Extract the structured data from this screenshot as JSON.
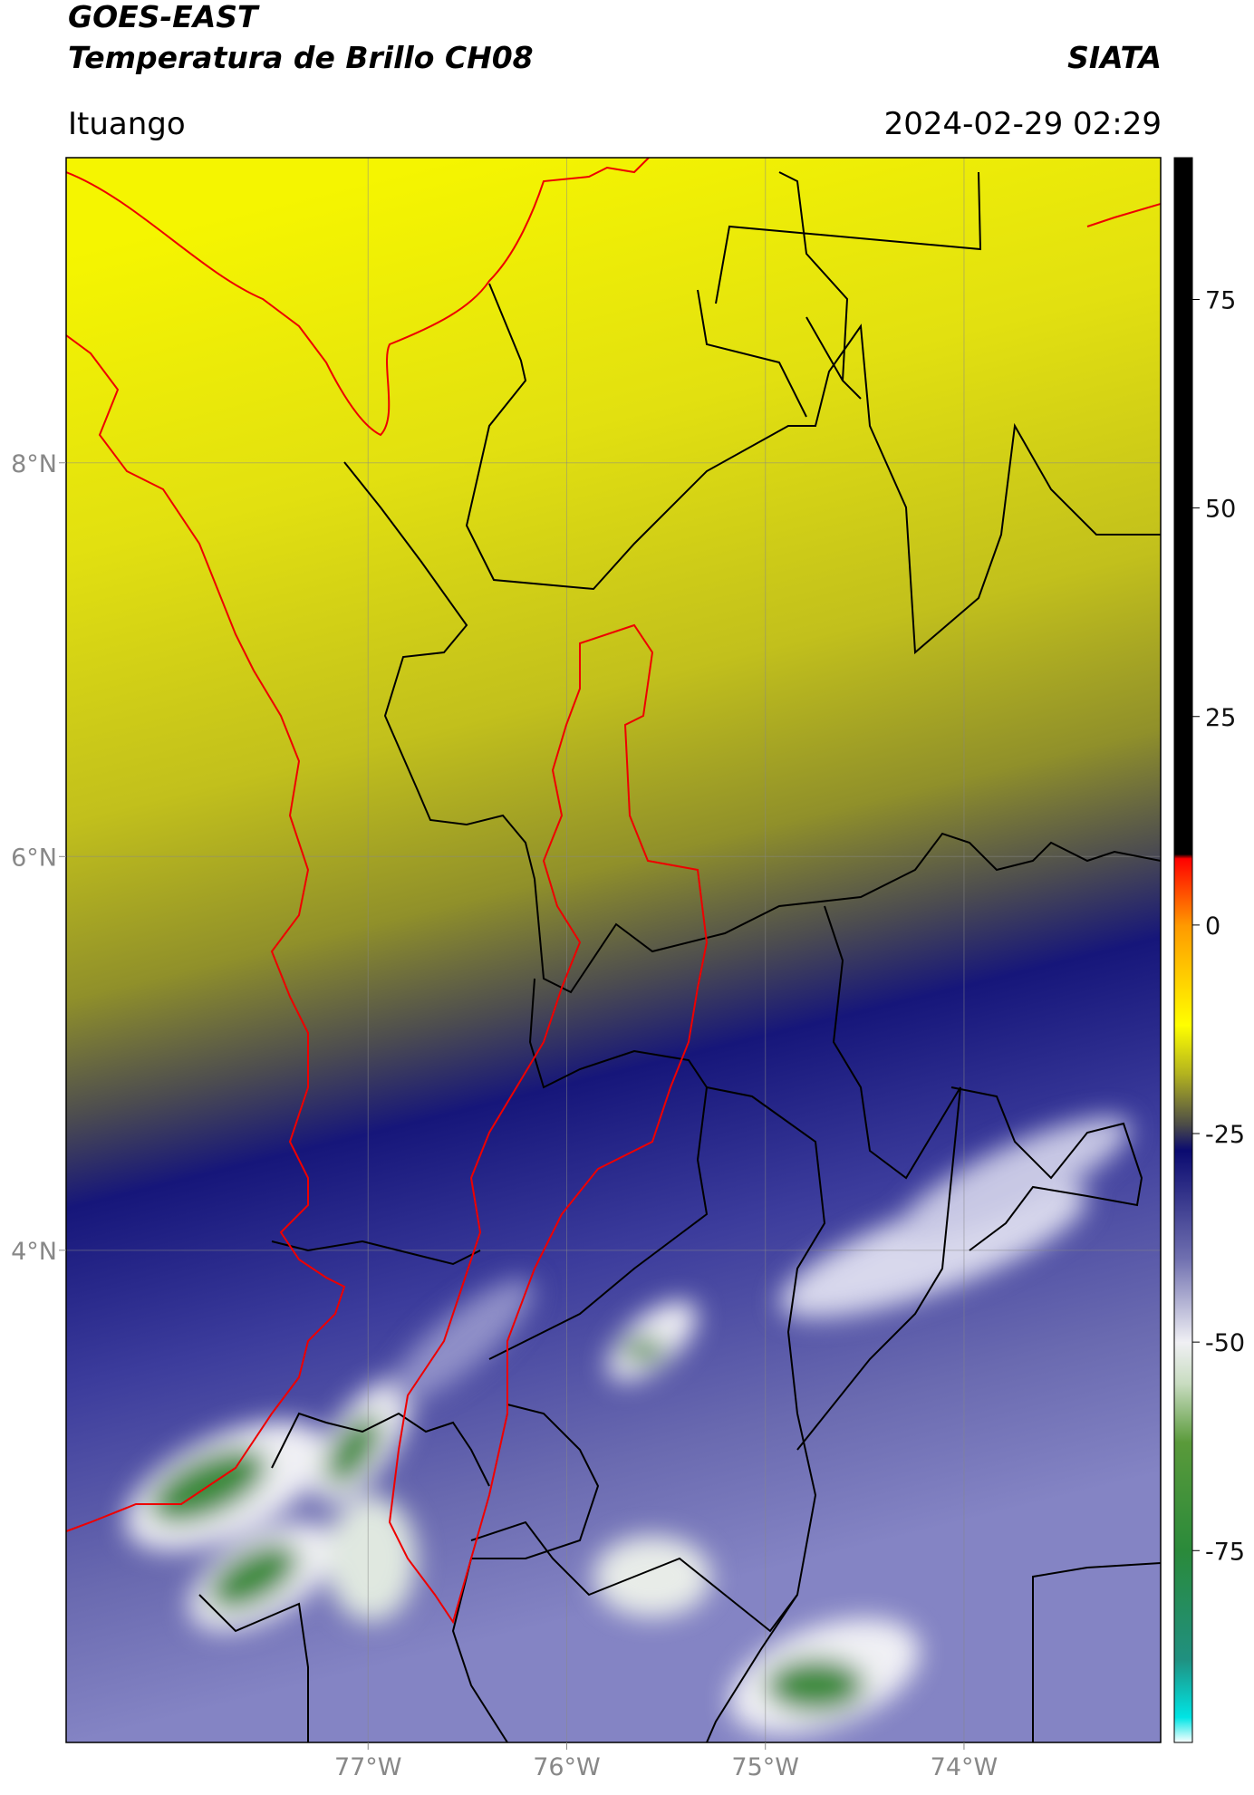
{
  "chart_data": {
    "type": "map",
    "title": "GOES-EAST",
    "subtitle": "Temperatura de Brillo CH08",
    "source": "SIATA",
    "location": "Ituango",
    "datetime": "2024-02-29 02:29",
    "xlim": [
      -78.52,
      -73.01
    ],
    "ylim": [
      1.5,
      9.55
    ],
    "xticks": [
      {
        "value": -77,
        "label": "77°W"
      },
      {
        "value": -76,
        "label": "76°W"
      },
      {
        "value": -75,
        "label": "75°W"
      },
      {
        "value": -74,
        "label": "74°W"
      }
    ],
    "yticks": [
      {
        "value": 4,
        "label": "4°N"
      },
      {
        "value": 6,
        "label": "6°N"
      },
      {
        "value": 8,
        "label": "8°N"
      }
    ],
    "grid": true,
    "colorbar": {
      "clim": [
        -98,
        92
      ],
      "ticks": [
        -75,
        -50,
        -25,
        0,
        25,
        50,
        75
      ],
      "colormap": [
        {
          "value": -98,
          "color": "#ffffff"
        },
        {
          "value": -95,
          "color": "#00e5e5"
        },
        {
          "value": -88,
          "color": "#209080"
        },
        {
          "value": -75,
          "color": "#2a8a3a"
        },
        {
          "value": -62,
          "color": "#5a9a3a"
        },
        {
          "value": -55,
          "color": "#c8dcc0"
        },
        {
          "value": -50,
          "color": "#f0f0f4"
        },
        {
          "value": -40,
          "color": "#7070b0"
        },
        {
          "value": -27,
          "color": "#0a0a70"
        },
        {
          "value": -24,
          "color": "#4a4a48"
        },
        {
          "value": -18,
          "color": "#b0b020"
        },
        {
          "value": -12,
          "color": "#ffff00"
        },
        {
          "value": 0,
          "color": "#ff9900"
        },
        {
          "value": 8,
          "color": "#ff0000"
        },
        {
          "value": 8.5,
          "color": "#000000"
        },
        {
          "value": 92,
          "color": "#000000"
        }
      ]
    }
  }
}
